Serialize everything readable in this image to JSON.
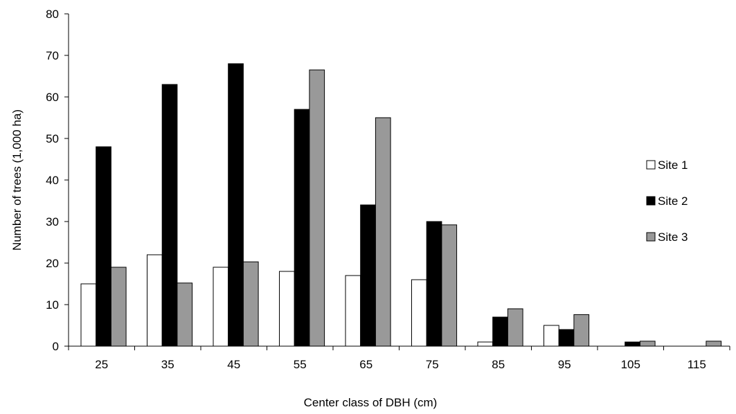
{
  "chart_data": {
    "type": "bar",
    "title": "",
    "xlabel": "Center class of DBH (cm)",
    "ylabel": "Number of trees (1,000 ha)",
    "ylim": [
      0,
      80
    ],
    "yticks": [
      "0",
      "10",
      "20",
      "30",
      "40",
      "50",
      "60",
      "70",
      "80"
    ],
    "categories": [
      "25",
      "35",
      "45",
      "55",
      "65",
      "75",
      "85",
      "95",
      "105",
      "115"
    ],
    "series": [
      {
        "name": "Site 1",
        "color": "#ffffff",
        "values": [
          15,
          22,
          19,
          18,
          17,
          16,
          1,
          5,
          0,
          0
        ]
      },
      {
        "name": "Site 2",
        "color": "#000000",
        "values": [
          48,
          63,
          68,
          57,
          34,
          30,
          7,
          4,
          1,
          0
        ]
      },
      {
        "name": "Site 3",
        "color": "#999999",
        "values": [
          19,
          15.2,
          20.3,
          66.5,
          55,
          29.2,
          9,
          7.6,
          1.2,
          1.2
        ]
      }
    ],
    "legend_position": "right",
    "grid": false
  }
}
